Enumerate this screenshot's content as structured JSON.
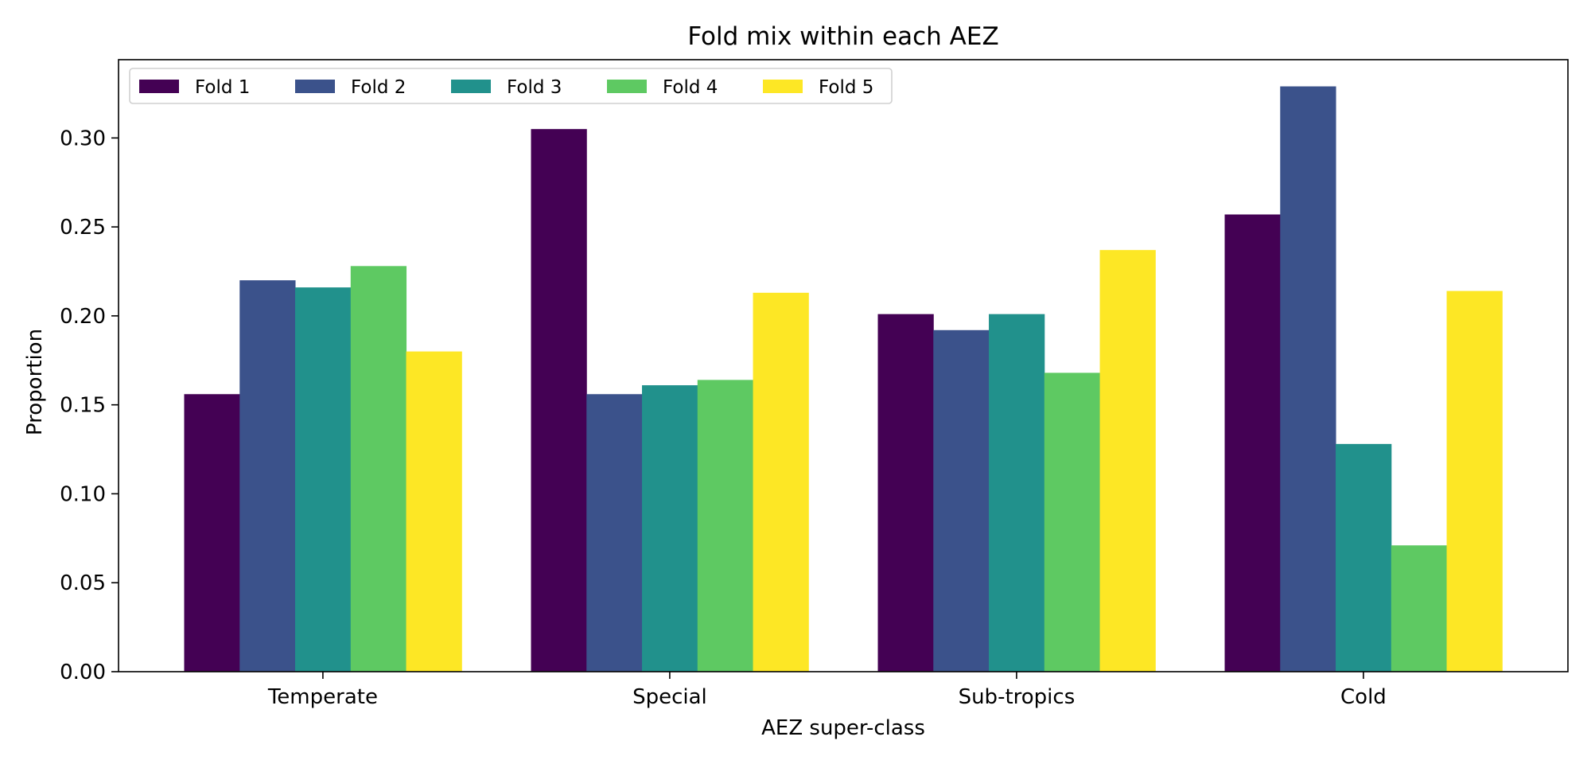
{
  "chart_data": {
    "type": "bar",
    "title": "Fold mix within each AEZ",
    "xlabel": "AEZ super-class",
    "ylabel": "Proportion",
    "categories": [
      "Temperate",
      "Special",
      "Sub-tropics",
      "Cold"
    ],
    "ylim": [
      0,
      0.344
    ],
    "yticks": [
      "0.00",
      "0.05",
      "0.10",
      "0.15",
      "0.20",
      "0.25",
      "0.30"
    ],
    "legend_position": "top-left",
    "series": [
      {
        "name": "Fold 1",
        "color": "#440154",
        "values": [
          0.156,
          0.305,
          0.201,
          0.257
        ]
      },
      {
        "name": "Fold 2",
        "color": "#3b528b",
        "values": [
          0.22,
          0.156,
          0.192,
          0.329
        ]
      },
      {
        "name": "Fold 3",
        "color": "#21918c",
        "values": [
          0.216,
          0.161,
          0.201,
          0.128
        ]
      },
      {
        "name": "Fold 4",
        "color": "#5ec962",
        "values": [
          0.228,
          0.164,
          0.168,
          0.071
        ]
      },
      {
        "name": "Fold 5",
        "color": "#fde725",
        "values": [
          0.18,
          0.213,
          0.237,
          0.214
        ]
      }
    ]
  }
}
